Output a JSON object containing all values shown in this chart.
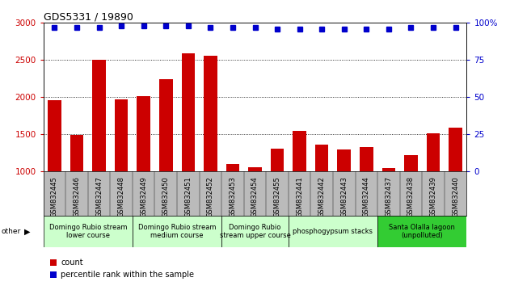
{
  "title": "GDS5331 / 19890",
  "samples": [
    "GSM832445",
    "GSM832446",
    "GSM832447",
    "GSM832448",
    "GSM832449",
    "GSM832450",
    "GSM832451",
    "GSM832452",
    "GSM832453",
    "GSM832454",
    "GSM832455",
    "GSM832441",
    "GSM832442",
    "GSM832443",
    "GSM832444",
    "GSM832437",
    "GSM832438",
    "GSM832439",
    "GSM832440"
  ],
  "counts": [
    1960,
    1490,
    2500,
    1970,
    2020,
    2240,
    2590,
    2560,
    1100,
    1055,
    1310,
    1545,
    1360,
    1300,
    1330,
    1050,
    1220,
    1510,
    1590
  ],
  "percentile": [
    97,
    97,
    97,
    98,
    98,
    98,
    98,
    97,
    97,
    97,
    96,
    96,
    96,
    96,
    96,
    96,
    97,
    97,
    97
  ],
  "bar_color": "#cc0000",
  "dot_color": "#0000cc",
  "ylim_left": [
    1000,
    3000
  ],
  "ylim_right": [
    0,
    100
  ],
  "yticks_left": [
    1000,
    1500,
    2000,
    2500,
    3000
  ],
  "yticks_right": [
    0,
    25,
    50,
    75,
    100
  ],
  "background_color": "#ffffff",
  "tick_label_bg": "#bbbbbb",
  "group_spans": [
    {
      "start": 0,
      "end": 3,
      "label": "Domingo Rubio stream\nlower course",
      "color": "#ccffcc"
    },
    {
      "start": 4,
      "end": 7,
      "label": "Domingo Rubio stream\nmedium course",
      "color": "#ccffcc"
    },
    {
      "start": 8,
      "end": 10,
      "label": "Domingo Rubio\nstream upper course",
      "color": "#ccffcc"
    },
    {
      "start": 11,
      "end": 14,
      "label": "phosphogypsum stacks",
      "color": "#ccffcc"
    },
    {
      "start": 15,
      "end": 18,
      "label": "Santa Olalla lagoon\n(unpolluted)",
      "color": "#33cc33"
    }
  ],
  "legend_count_label": "count",
  "legend_pct_label": "percentile rank within the sample"
}
